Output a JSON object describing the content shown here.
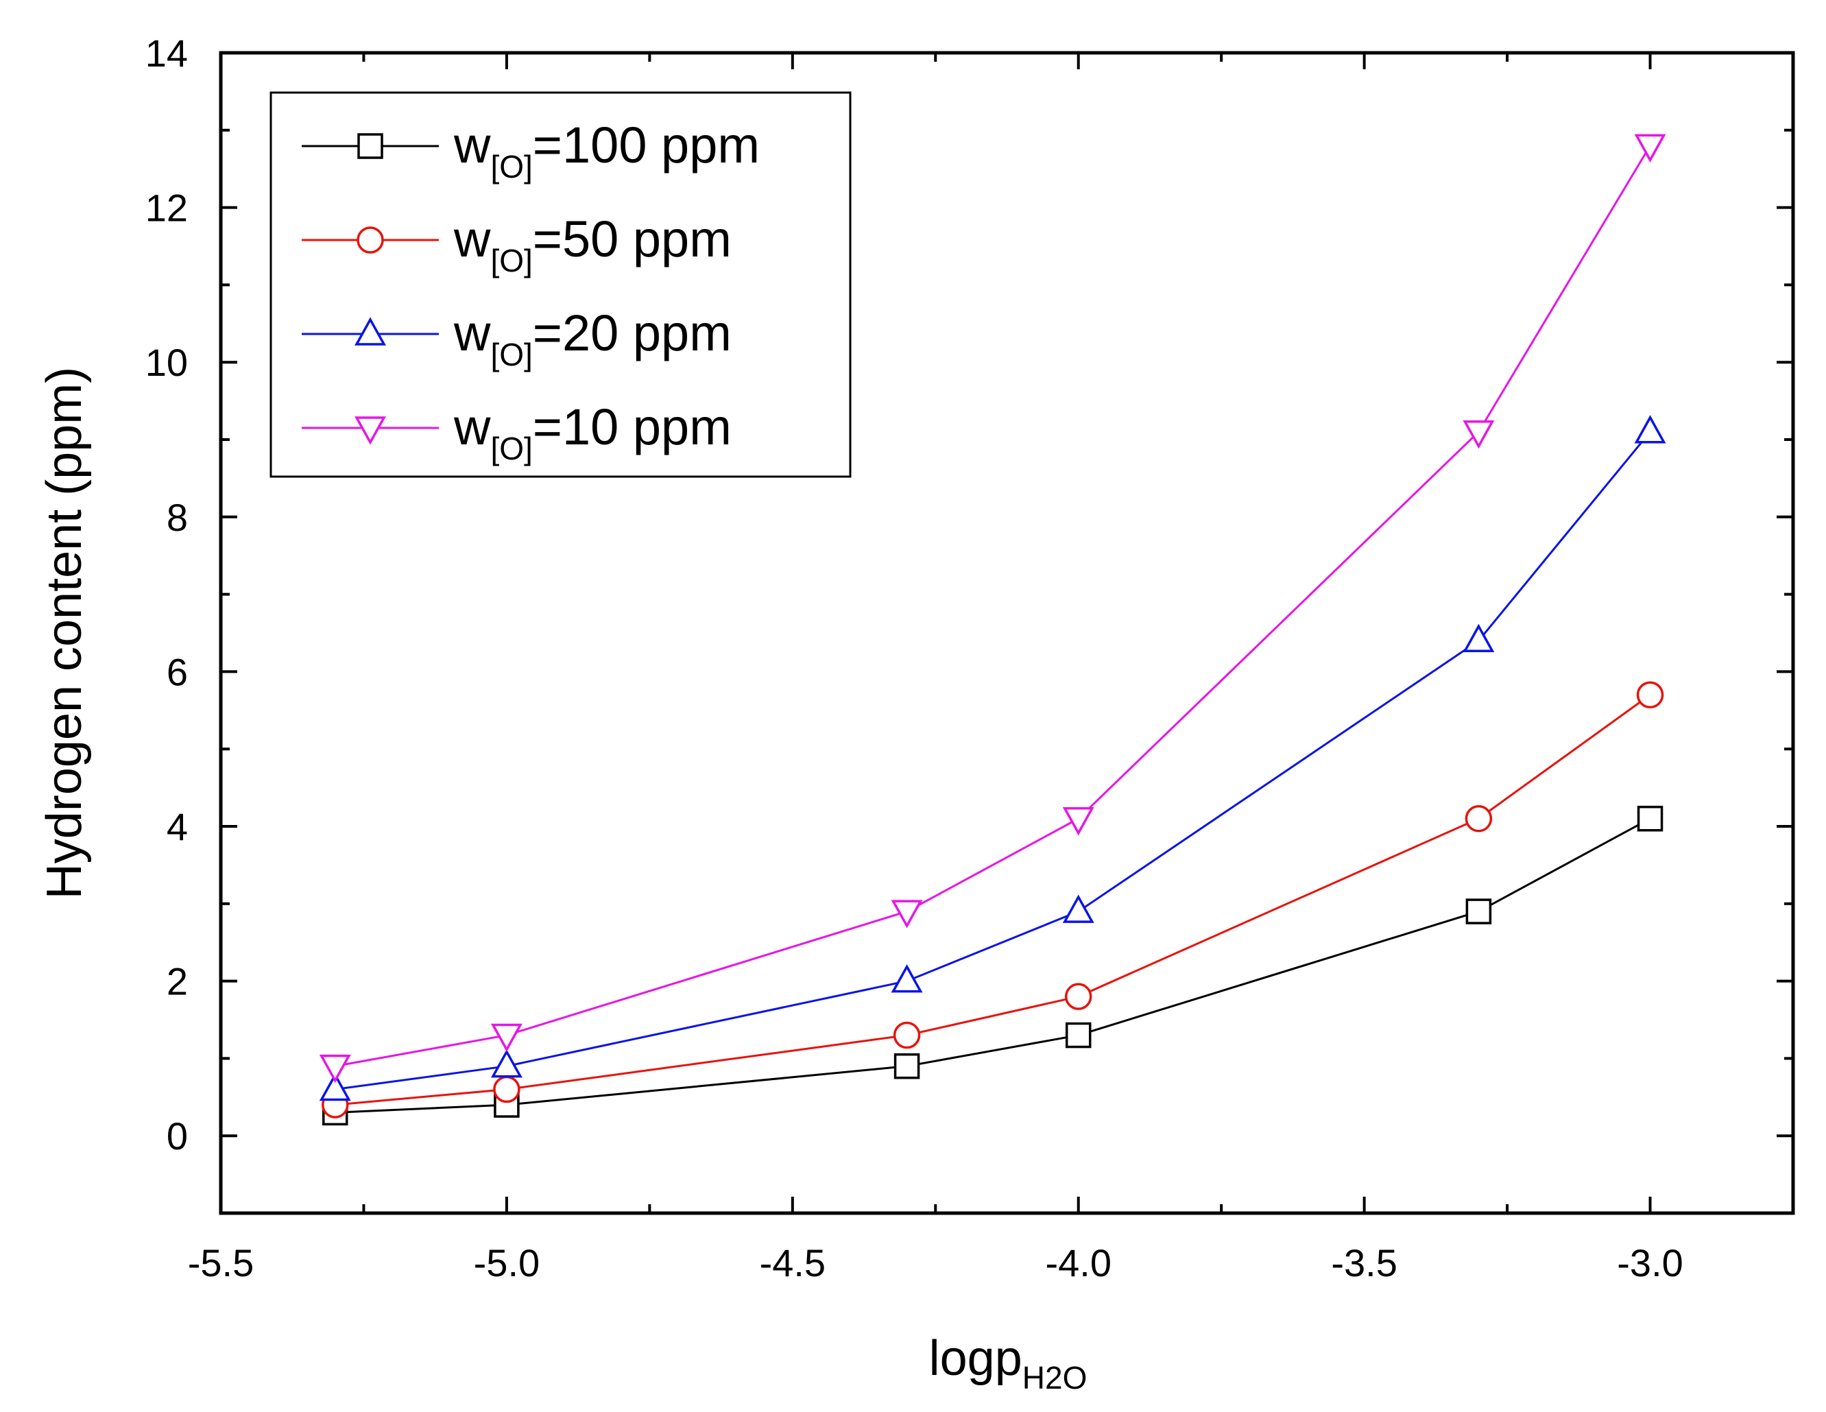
{
  "chart_data": {
    "type": "line",
    "x": [
      -5.3,
      -5.0,
      -4.3,
      -4.0,
      -3.3,
      -3.0
    ],
    "xlim": [
      -5.5,
      -2.75
    ],
    "ylim": [
      -1,
      14
    ],
    "xticks": [
      -5.5,
      -5.0,
      -4.5,
      -4.0,
      -3.5,
      -3.0
    ],
    "xtick_labels": [
      "-5.5",
      "-5.0",
      "-4.5",
      "-4.0",
      "-3.5",
      "-3.0"
    ],
    "yticks": [
      0,
      2,
      4,
      6,
      8,
      10,
      12,
      14
    ],
    "ytick_labels": [
      "0",
      "2",
      "4",
      "6",
      "8",
      "10",
      "12",
      "14"
    ],
    "xlabel": {
      "main": "logp",
      "sub": "H2O"
    },
    "ylabel": "Hydrogen content (ppm)",
    "legend_position": "top-left",
    "series": [
      {
        "name": "w[O]=100 ppm",
        "label_main": "w",
        "label_sub": "[O]",
        "label_rest": "=100 ppm",
        "color": "#000000",
        "marker": "square",
        "values": [
          0.3,
          0.4,
          0.9,
          1.3,
          2.9,
          4.1
        ]
      },
      {
        "name": "w[O]=50 ppm",
        "label_main": "w",
        "label_sub": "[O]",
        "label_rest": "=50 ppm",
        "color": "#e8130c",
        "marker": "circle",
        "values": [
          0.4,
          0.6,
          1.3,
          1.8,
          4.1,
          5.7
        ]
      },
      {
        "name": "w[O]=20 ppm",
        "label_main": "w",
        "label_sub": "[O]",
        "label_rest": "=20 ppm",
        "color": "#0a14e6",
        "marker": "triangle-up",
        "values": [
          0.6,
          0.9,
          2.0,
          2.9,
          6.4,
          9.1
        ]
      },
      {
        "name": "w[O]=10 ppm",
        "label_main": "w",
        "label_sub": "[O]",
        "label_rest": "=10 ppm",
        "color": "#e616e6",
        "marker": "triangle-down",
        "values": [
          0.9,
          1.3,
          2.9,
          4.1,
          9.1,
          12.8
        ]
      }
    ]
  }
}
